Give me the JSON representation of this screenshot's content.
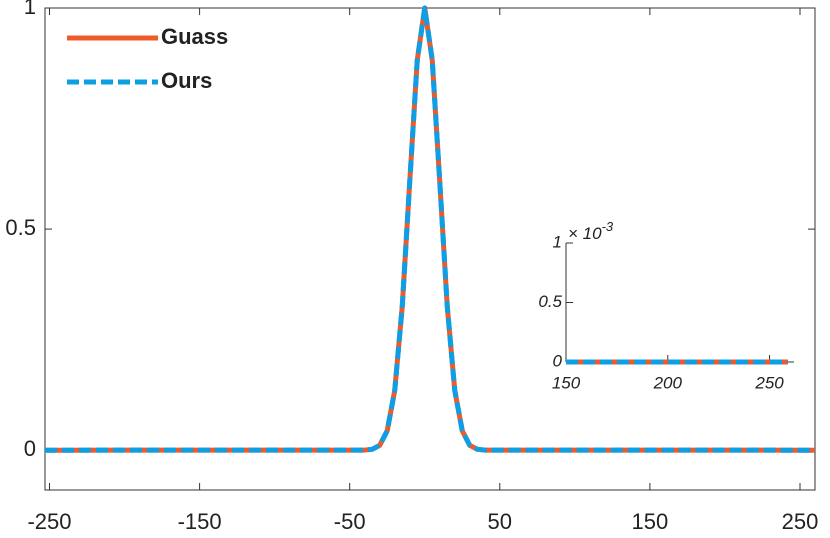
{
  "chart_data": [
    {
      "type": "line",
      "x": [
        -253,
        -40,
        -35,
        -30,
        -25,
        -20,
        -15,
        -10,
        -5,
        0,
        5,
        10,
        15,
        20,
        25,
        30,
        35,
        40,
        260
      ],
      "series": [
        {
          "name": "Guass",
          "color": "#f05a28",
          "dash": "solid",
          "values": [
            0,
            0.0003,
            0.002,
            0.011,
            0.044,
            0.135,
            0.325,
            0.607,
            0.882,
            1,
            0.882,
            0.607,
            0.325,
            0.135,
            0.044,
            0.011,
            0.002,
            0.0003,
            0
          ]
        },
        {
          "name": "Ours",
          "color": "#0c9fe6",
          "dash": "dashed",
          "values": [
            0,
            0.0003,
            0.002,
            0.011,
            0.044,
            0.135,
            0.325,
            0.607,
            0.882,
            1,
            0.882,
            0.607,
            0.325,
            0.135,
            0.044,
            0.011,
            0.002,
            0.0003,
            0
          ]
        }
      ],
      "xlim": [
        -253,
        260
      ],
      "ylim": [
        -0.09,
        1
      ],
      "xticks": [
        -250,
        -150,
        -50,
        50,
        150,
        250
      ],
      "yticks": [
        0,
        0.5,
        1
      ],
      "legend": "upper left",
      "grid": false
    },
    {
      "type": "line",
      "x": [
        150,
        259
      ],
      "series": [
        {
          "name": "Guass",
          "color": "#f05a28",
          "dash": "solid",
          "values": [
            0,
            0
          ]
        },
        {
          "name": "Ours",
          "color": "#0c9fe6",
          "dash": "dashed",
          "values": [
            0,
            0
          ]
        }
      ],
      "xlim": [
        150,
        262
      ],
      "ylim": [
        0,
        0.001
      ],
      "xticks": [
        150,
        200,
        250
      ],
      "yticks": [
        {
          "value": 0,
          "label": "0"
        },
        {
          "value": 0.0005,
          "label": "0.5"
        },
        {
          "value": 0.001,
          "label": "1"
        }
      ],
      "y_exponent": {
        "base": "× 10",
        "power": "-3"
      },
      "grid": false
    }
  ]
}
